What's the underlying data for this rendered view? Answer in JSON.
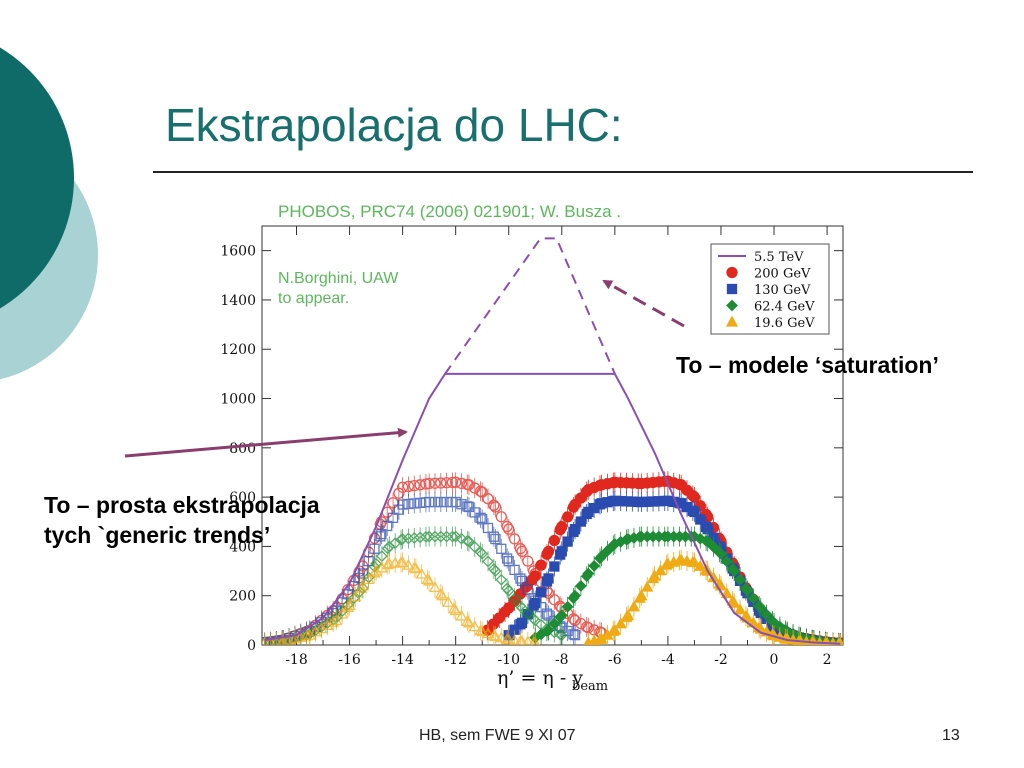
{
  "slide": {
    "title": "Ekstrapolacja do LHC:",
    "footer_text": "HB, sem FWE 9 XI 07",
    "page_number": "13",
    "accent_color": "#17706d",
    "decor_colors": [
      "#0e6b68",
      "#a9d2d4"
    ]
  },
  "annotations": {
    "saturation": "To – modele ‘saturation’",
    "extrapolation_line1": "To – prosta ekstrapolacja",
    "extrapolation_line2": "tych `generic trends’",
    "arrow_color": "#8b3d6e"
  },
  "chart_data": {
    "type": "line",
    "title": "PHOBOS, PRC74 (2006) 021901; W. Busza .",
    "inner_note": [
      "N.Borghini, UAW",
      "to appear."
    ],
    "xlabel_parts": {
      "main": "η’ = η - y",
      "sub": "beam"
    },
    "ylabel": "",
    "xlim": [
      -19.3,
      2.6
    ],
    "ylim": [
      0,
      1700
    ],
    "xticks": [
      -18,
      -16,
      -14,
      -12,
      -10,
      -8,
      -6,
      -4,
      -2,
      0,
      2
    ],
    "yticks": [
      0,
      200,
      400,
      600,
      800,
      1000,
      1200,
      1400,
      1600
    ],
    "grid": false,
    "legend_position": "top-right",
    "series": [
      {
        "name": "5.5 TeV",
        "color": "#8a4fb3",
        "marker": "line",
        "x": [
          -19.2,
          -18,
          -17,
          -16,
          -15,
          -14,
          -13,
          -12.4,
          -6.0,
          -5.5,
          -4.5,
          -3.5,
          -2.5,
          -1.5,
          -0.5,
          0.5,
          1.5,
          2.5
        ],
        "y": [
          20,
          40,
          110,
          250,
          480,
          750,
          1000,
          1100,
          1100,
          1000,
          780,
          530,
          300,
          130,
          50,
          20,
          10,
          5
        ],
        "extrapolated": {
          "x": [
            -12.4,
            -8.8,
            -8.2,
            -6.0
          ],
          "y": [
            1100,
            1650,
            1650,
            1100
          ]
        }
      },
      {
        "name": "200 GeV",
        "color": "#e0281e",
        "marker": "circle",
        "mirror": {
          "x": [
            -19.2,
            -18.5,
            -17.5,
            -16.5,
            -15.5,
            -14.8,
            -14,
            -13,
            -12,
            -11.5,
            -11,
            -10.5,
            -10,
            -9.5,
            -9,
            -8.5,
            -8,
            -7.5,
            -7,
            -6.5
          ],
          "y": [
            10,
            20,
            60,
            150,
            320,
            500,
            640,
            655,
            660,
            650,
            620,
            560,
            470,
            380,
            290,
            210,
            150,
            100,
            70,
            50
          ]
        },
        "x": [
          -10.8,
          -10,
          -9,
          -8.5,
          -8,
          -7.5,
          -7,
          -6.5,
          -6,
          -5,
          -4,
          -3.5,
          -3,
          -2.5,
          -2,
          -1.5,
          -1,
          -0.5,
          0,
          0.5,
          1,
          1.5,
          2,
          2.5
        ],
        "y": [
          60,
          150,
          280,
          380,
          480,
          570,
          630,
          650,
          660,
          655,
          665,
          650,
          600,
          520,
          420,
          320,
          220,
          140,
          80,
          50,
          30,
          20,
          12,
          8
        ]
      },
      {
        "name": "130 GeV",
        "color": "#2a4bb0",
        "marker": "square",
        "mirror": {
          "x": [
            -19.2,
            -18.5,
            -17.5,
            -16.5,
            -15.5,
            -14.8,
            -14,
            -13,
            -12,
            -11.5,
            -11,
            -10.5,
            -10,
            -9.5,
            -9,
            -8.5,
            -8,
            -7.5
          ],
          "y": [
            10,
            20,
            55,
            140,
            290,
            450,
            570,
            580,
            580,
            560,
            510,
            430,
            340,
            260,
            180,
            120,
            70,
            40
          ]
        },
        "x": [
          -10,
          -9.5,
          -9,
          -8.5,
          -8,
          -7.5,
          -7,
          -6.5,
          -6,
          -5,
          -4,
          -3.5,
          -3,
          -2.5,
          -2,
          -1.5,
          -1,
          -0.5,
          0,
          0.5,
          1,
          1.5,
          2,
          2.5
        ],
        "y": [
          40,
          90,
          170,
          270,
          380,
          470,
          540,
          575,
          585,
          580,
          585,
          575,
          540,
          470,
          390,
          300,
          210,
          130,
          75,
          45,
          28,
          18,
          10,
          6
        ]
      },
      {
        "name": "62.4 GeV",
        "color": "#1e8c34",
        "marker": "diamond",
        "mirror": {
          "x": [
            -19.2,
            -18.5,
            -17.5,
            -16.5,
            -15.5,
            -15,
            -14.5,
            -14,
            -13,
            -12,
            -11.5,
            -11,
            -10.5,
            -10,
            -9.5,
            -9,
            -8.5,
            -8
          ],
          "y": [
            8,
            15,
            45,
            110,
            230,
            330,
            400,
            430,
            440,
            440,
            420,
            370,
            300,
            220,
            150,
            100,
            60,
            40
          ]
        },
        "x": [
          -9,
          -8.5,
          -8,
          -7.5,
          -7,
          -6.5,
          -6,
          -5.5,
          -5,
          -4,
          -3,
          -2.5,
          -2,
          -1.5,
          -1,
          -0.5,
          0,
          0.5,
          1,
          1.5,
          2,
          2.5
        ],
        "y": [
          30,
          60,
          120,
          200,
          290,
          360,
          410,
          430,
          440,
          440,
          440,
          420,
          370,
          300,
          220,
          150,
          90,
          55,
          32,
          20,
          12,
          8
        ]
      },
      {
        "name": "19.6 GeV",
        "color": "#f0aa14",
        "marker": "triangle",
        "mirror": {
          "x": [
            -19.2,
            -18.5,
            -17.5,
            -16.5,
            -16,
            -15.5,
            -15,
            -14.5,
            -14,
            -13.5,
            -13,
            -12.5,
            -12,
            -11.5,
            -11,
            -10.5,
            -10,
            -9.5,
            -9
          ],
          "y": [
            8,
            14,
            40,
            100,
            160,
            240,
            300,
            330,
            335,
            310,
            260,
            200,
            140,
            90,
            55,
            35,
            22,
            15,
            10
          ]
        },
        "x": [
          -7,
          -6.5,
          -6,
          -5.5,
          -5,
          -4.5,
          -4,
          -3.5,
          -3,
          -2.5,
          -2,
          -1.5,
          -1,
          -0.5,
          0,
          0.5,
          1,
          1.5,
          2,
          2.5
        ],
        "y": [
          10,
          25,
          60,
          120,
          200,
          280,
          330,
          345,
          335,
          300,
          240,
          170,
          110,
          65,
          38,
          24,
          15,
          10,
          7,
          5
        ]
      }
    ]
  }
}
